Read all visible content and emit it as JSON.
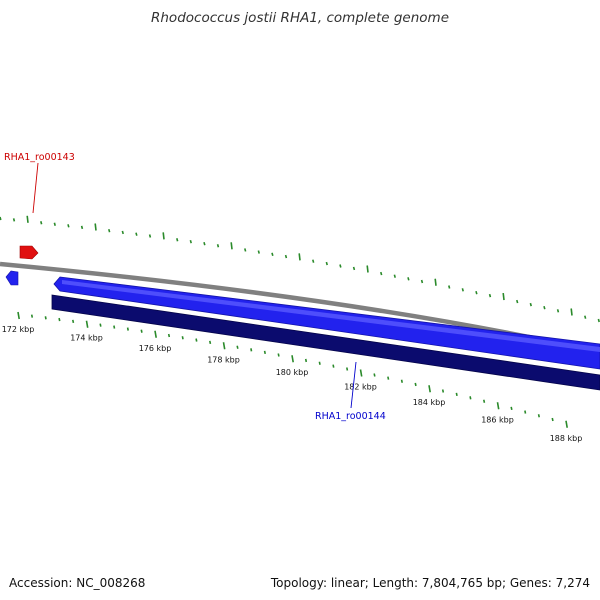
{
  "title": "Rhodococcus jostii RHA1, complete genome",
  "footer": {
    "accession": "Accession: NC_008268",
    "summary": "Topology: linear; Length: 7,804,765 bp; Genes: 7,274"
  },
  "colors": {
    "forward_gene": "#2020ee",
    "reverse_gene": "#0a0a6e",
    "highlight_gene": "#e01010",
    "backbone": "#808080",
    "gc_ticks": "#2a8a2a",
    "label_red": "#cc0000",
    "label_blue": "#0000cc"
  },
  "scale": {
    "unit": "kbp",
    "ticks": [
      {
        "pos": 172,
        "label": "172 kbp"
      },
      {
        "pos": 174,
        "label": "174 kbp"
      },
      {
        "pos": 176,
        "label": "176 kbp"
      },
      {
        "pos": 178,
        "label": "178 kbp"
      },
      {
        "pos": 180,
        "label": "180 kbp"
      },
      {
        "pos": 182,
        "label": "182 kbp"
      },
      {
        "pos": 184,
        "label": "184 kbp"
      },
      {
        "pos": 186,
        "label": "186 kbp"
      },
      {
        "pos": 188,
        "label": "188 kbp"
      }
    ]
  },
  "features": [
    {
      "id": "RHA1_ro00143",
      "label": "RHA1_ro00143",
      "strand": "+",
      "highlight": true
    },
    {
      "id": "RHA1_ro00144",
      "label": "RHA1_ro00144",
      "strand": "-",
      "highlight": false
    }
  ]
}
